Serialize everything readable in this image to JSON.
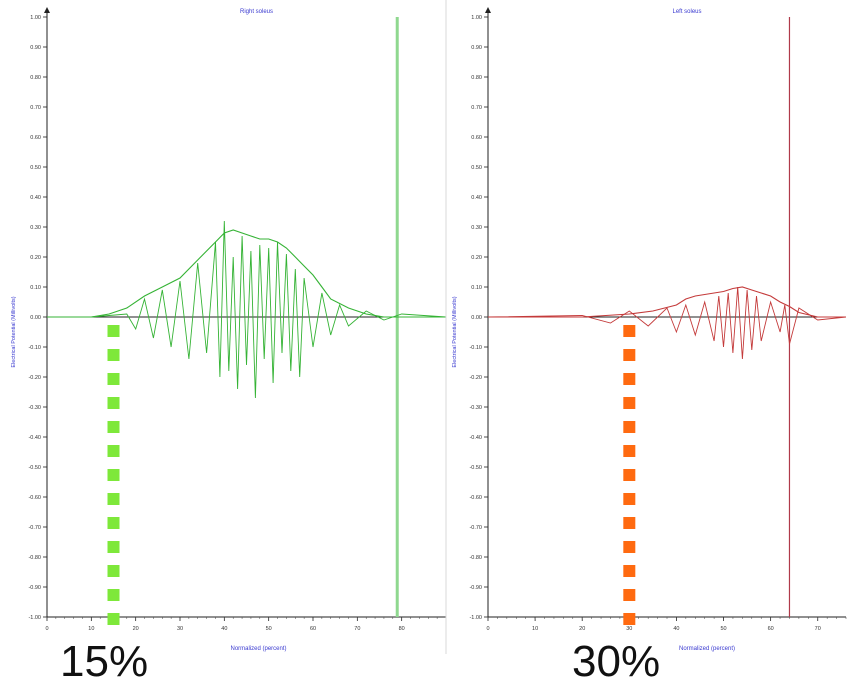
{
  "panels": [
    {
      "title": "Right soleus",
      "xlabel": "Normalized (percent)",
      "ylabel": "Electrical Potential (Millivolts)",
      "line_color": "#35b335",
      "marker_color": "#7ee83a",
      "vertical_line_color": "#8fd88f"
    },
    {
      "title": "Left soleus",
      "xlabel": "Normalized (percent)",
      "ylabel": "Electrical Potential (Millivolts)",
      "line_color": "#c43a3a",
      "marker_color": "#ff6a10",
      "vertical_line_color": "#b03a4a"
    }
  ],
  "annotations": {
    "left_percent": "15%",
    "right_percent": "30%"
  },
  "chart_data": [
    {
      "type": "line",
      "title": "Right soleus",
      "xlabel": "Normalized (percent)",
      "ylabel": "Electrical Potential (Millivolts)",
      "xlim": [
        0,
        90
      ],
      "ylim": [
        -1.0,
        1.0
      ],
      "xticks": [
        "0",
        "10",
        "20",
        "30",
        "40",
        "50",
        "60",
        "70",
        "80"
      ],
      "yticks": [
        "1.00",
        "0.90",
        "0.80",
        "0.70",
        "0.60",
        "0.50",
        "0.40",
        "0.30",
        "0.20",
        "0.10",
        "0.00",
        "-0.10",
        "-0.20",
        "-0.30",
        "-0.40",
        "-0.50",
        "-0.60",
        "-0.70",
        "-0.80",
        "-0.90",
        "-1.00"
      ],
      "grid": false,
      "series": [
        {
          "kind": "envelope",
          "x": [
            0,
            10,
            14,
            18,
            22,
            26,
            30,
            34,
            38,
            40,
            42,
            44,
            46,
            48,
            50,
            52,
            54,
            56,
            58,
            60,
            62,
            64,
            68,
            72,
            76,
            80,
            90
          ],
          "values": [
            0.0,
            0.0,
            0.01,
            0.03,
            0.07,
            0.1,
            0.13,
            0.19,
            0.25,
            0.28,
            0.29,
            0.28,
            0.27,
            0.26,
            0.26,
            0.25,
            0.23,
            0.2,
            0.17,
            0.14,
            0.1,
            0.06,
            0.03,
            0.01,
            0.0,
            0.0,
            0.0
          ]
        },
        {
          "kind": "raw",
          "x": [
            0,
            10,
            18,
            20,
            22,
            24,
            26,
            28,
            30,
            32,
            34,
            36,
            38,
            39,
            40,
            41,
            42,
            43,
            44,
            45,
            46,
            47,
            48,
            49,
            50,
            51,
            52,
            53,
            54,
            55,
            56,
            57,
            58,
            60,
            62,
            64,
            66,
            68,
            72,
            76,
            80,
            90
          ],
          "values": [
            0.0,
            0.0,
            0.01,
            -0.04,
            0.06,
            -0.07,
            0.09,
            -0.1,
            0.12,
            -0.14,
            0.18,
            -0.12,
            0.25,
            -0.2,
            0.32,
            -0.18,
            0.2,
            -0.24,
            0.27,
            -0.16,
            0.22,
            -0.27,
            0.24,
            -0.14,
            0.23,
            -0.22,
            0.25,
            -0.12,
            0.21,
            -0.18,
            0.16,
            -0.2,
            0.13,
            -0.1,
            0.08,
            -0.06,
            0.04,
            -0.03,
            0.02,
            -0.01,
            0.01,
            0.0
          ]
        }
      ],
      "vertical_line_x": 79,
      "marker_x": 15
    },
    {
      "type": "line",
      "title": "Left soleus",
      "xlabel": "Normalized (percent)",
      "ylabel": "Electrical Potential (Millivolts)",
      "xlim": [
        0,
        76
      ],
      "ylim": [
        -1.0,
        1.0
      ],
      "xticks": [
        "0",
        "10",
        "20",
        "30",
        "40",
        "50",
        "60",
        "70"
      ],
      "yticks": [
        "1.00",
        "0.90",
        "0.80",
        "0.70",
        "0.60",
        "0.50",
        "0.40",
        "0.30",
        "0.20",
        "0.10",
        "0.00",
        "-0.10",
        "-0.20",
        "-0.30",
        "-0.40",
        "-0.50",
        "-0.60",
        "-0.70",
        "-0.80",
        "-0.90",
        "-1.00"
      ],
      "grid": false,
      "series": [
        {
          "kind": "envelope",
          "x": [
            0,
            20,
            25,
            30,
            35,
            40,
            42,
            44,
            46,
            48,
            50,
            52,
            54,
            56,
            58,
            60,
            62,
            64,
            66,
            70,
            76
          ],
          "values": [
            0.0,
            0.0,
            0.005,
            0.01,
            0.02,
            0.04,
            0.06,
            0.07,
            0.075,
            0.08,
            0.085,
            0.095,
            0.1,
            0.09,
            0.08,
            0.07,
            0.05,
            0.035,
            0.015,
            0.0,
            0.0
          ]
        },
        {
          "kind": "raw",
          "x": [
            0,
            20,
            26,
            30,
            34,
            38,
            40,
            42,
            44,
            46,
            48,
            49,
            50,
            51,
            52,
            53,
            54,
            55,
            56,
            57,
            58,
            60,
            62,
            63,
            64,
            66,
            70,
            76
          ],
          "values": [
            0.0,
            0.005,
            -0.02,
            0.02,
            -0.03,
            0.03,
            -0.05,
            0.04,
            -0.06,
            0.05,
            -0.08,
            0.07,
            -0.1,
            0.08,
            -0.12,
            0.1,
            -0.14,
            0.09,
            -0.11,
            0.07,
            -0.08,
            0.05,
            -0.05,
            0.04,
            -0.09,
            0.03,
            -0.01,
            0.0
          ]
        }
      ],
      "vertical_line_x": 64,
      "marker_x": 30
    }
  ]
}
